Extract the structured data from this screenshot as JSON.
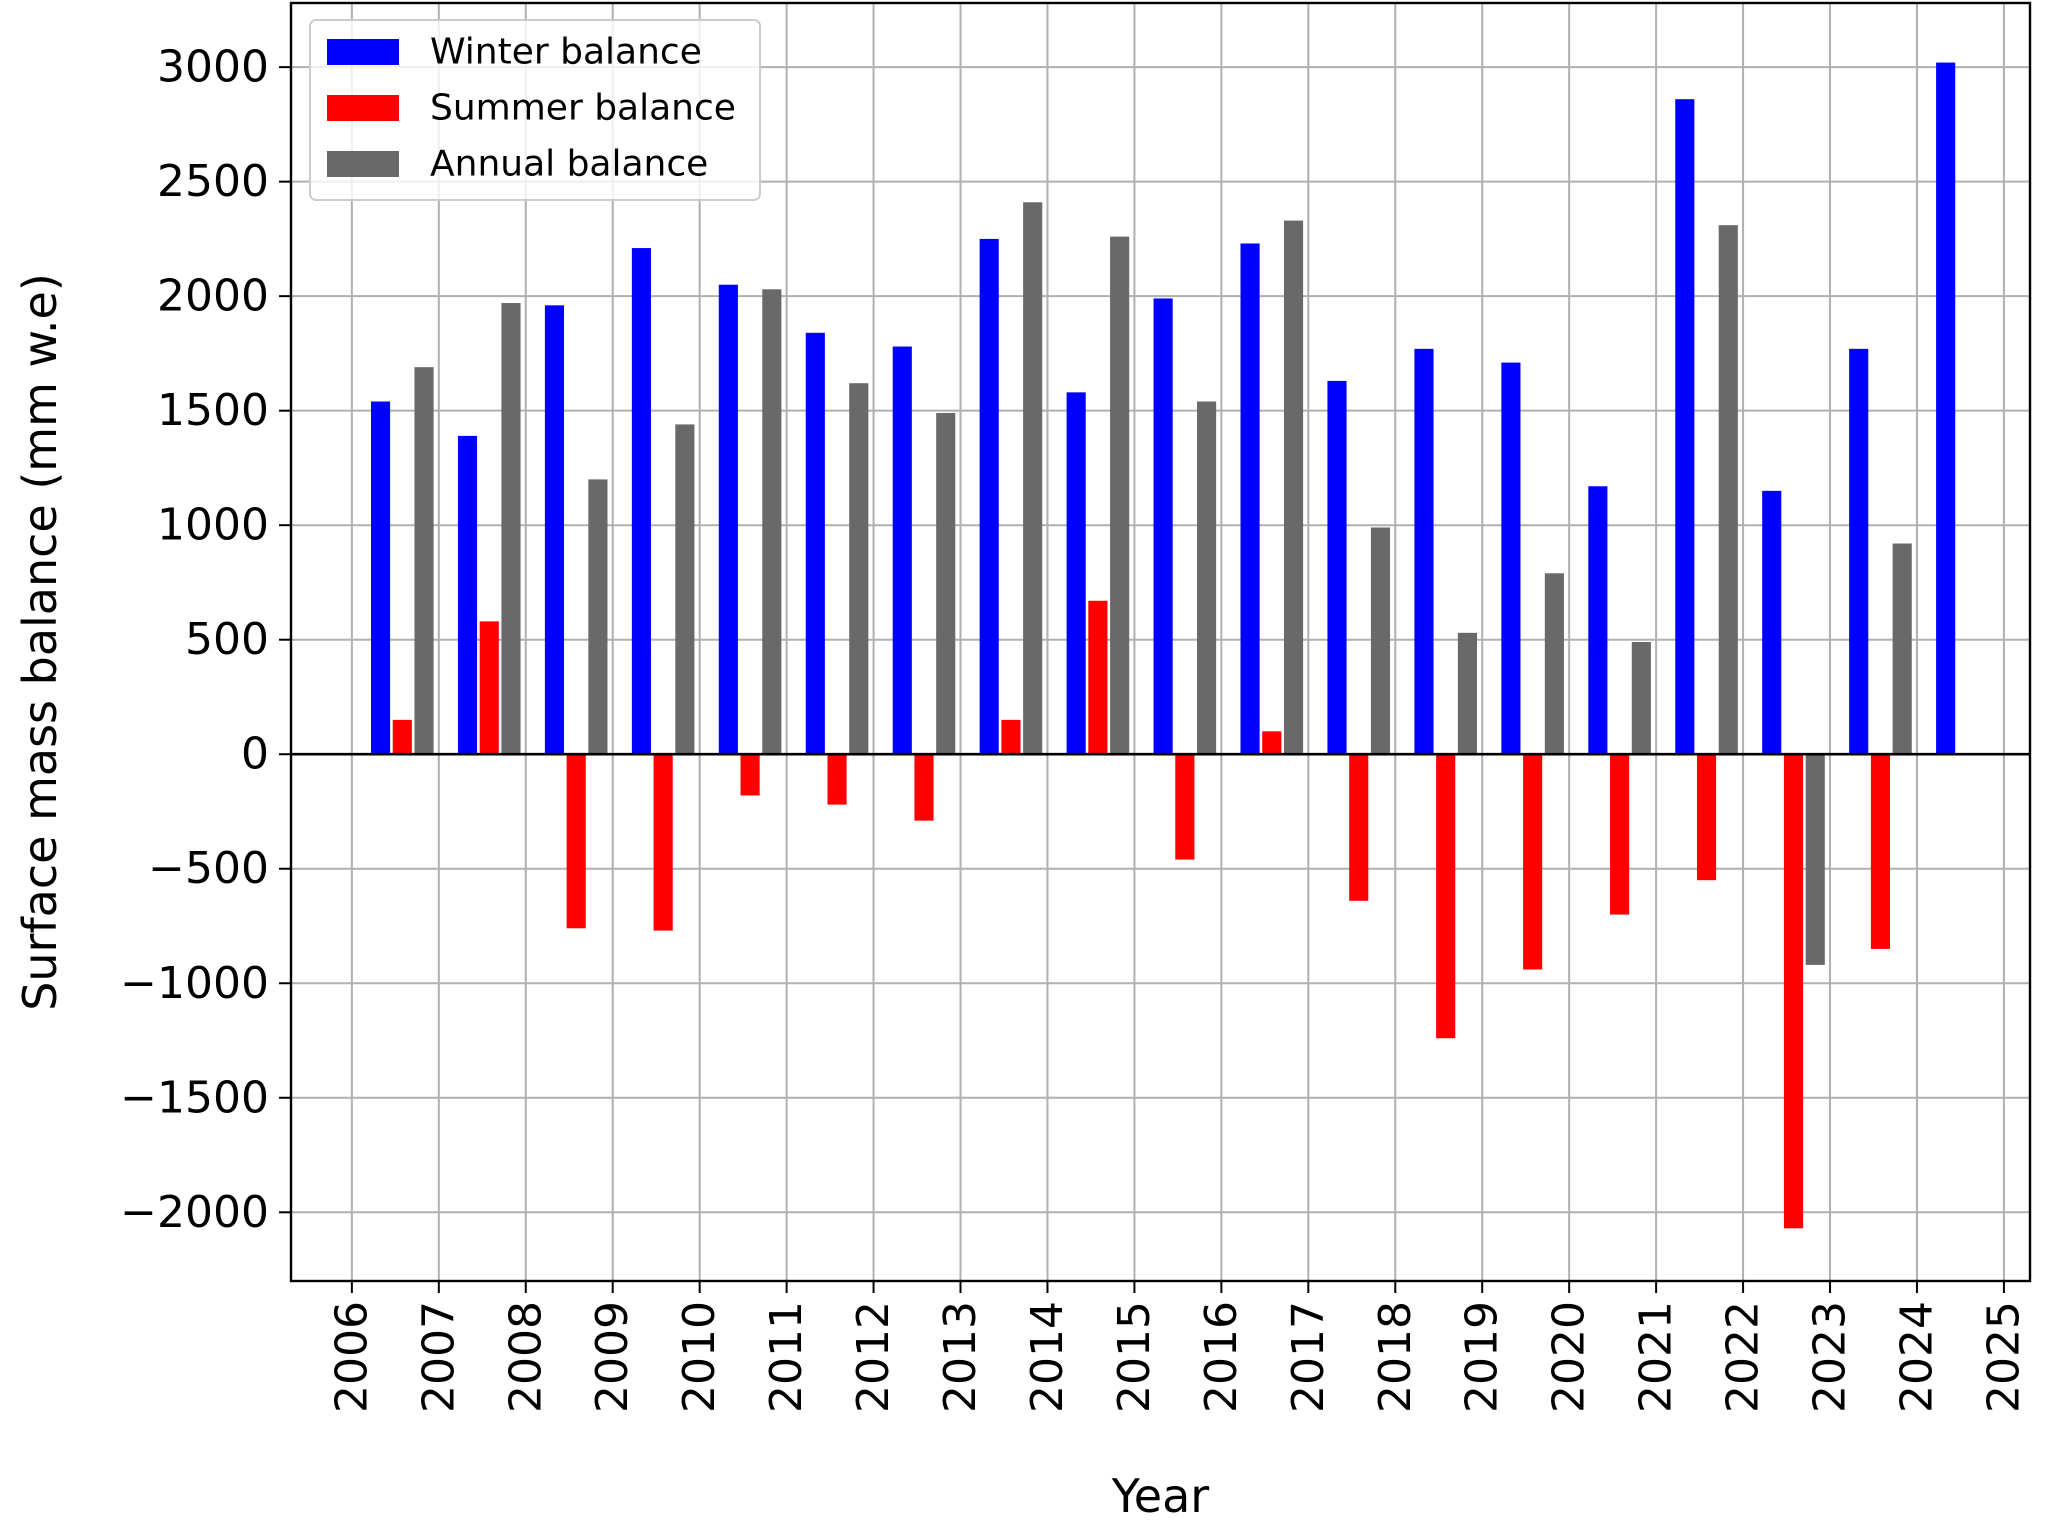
{
  "chart_data": {
    "type": "bar",
    "xlabel": "Year",
    "ylabel": "Surface mass balance (mm w.e)",
    "ylim": [
      -2300,
      3280
    ],
    "xlim": [
      2005.3,
      2025.3
    ],
    "x_ticks": [
      "2006",
      "2007",
      "2008",
      "2009",
      "2010",
      "2011",
      "2012",
      "2013",
      "2014",
      "2015",
      "2016",
      "2017",
      "2018",
      "2019",
      "2020",
      "2021",
      "2022",
      "2023",
      "2024",
      "2025"
    ],
    "y_ticks": [
      3000,
      2500,
      2000,
      1500,
      1000,
      500,
      0,
      -500,
      -1000,
      -1500,
      -2000
    ],
    "y_tick_labels": [
      "3000",
      "2500",
      "2000",
      "1500",
      "1000",
      "500",
      "0",
      "−500",
      "−1000",
      "−1500",
      "−2000"
    ],
    "grid": true,
    "legend_position": "top-left",
    "series": [
      {
        "name": "Winter balance",
        "color": "#0000ff",
        "x": [
          2006.33,
          2007.33,
          2008.33,
          2009.33,
          2010.33,
          2011.33,
          2012.33,
          2013.33,
          2014.33,
          2015.33,
          2016.33,
          2017.33,
          2018.33,
          2019.33,
          2020.33,
          2021.33,
          2022.33,
          2023.33,
          2024.33
        ],
        "values": [
          1540,
          1390,
          1960,
          2210,
          2050,
          1840,
          1780,
          2250,
          1580,
          1990,
          2230,
          1630,
          1770,
          1710,
          1170,
          2860,
          1150,
          1770,
          3020
        ]
      },
      {
        "name": "Summer balance",
        "color": "#ff0000",
        "x": [
          2006.58,
          2007.58,
          2008.58,
          2009.58,
          2010.58,
          2011.58,
          2012.58,
          2013.58,
          2014.58,
          2015.58,
          2016.58,
          2017.58,
          2018.58,
          2019.58,
          2020.58,
          2021.58,
          2022.58,
          2023.58
        ],
        "values": [
          150,
          580,
          -760,
          -770,
          -180,
          -220,
          -290,
          150,
          670,
          -460,
          100,
          -640,
          -1240,
          -940,
          -700,
          -550,
          -2070,
          -850
        ]
      },
      {
        "name": "Annual balance",
        "color": "#696969",
        "x": [
          2006.83,
          2007.83,
          2008.83,
          2009.83,
          2010.83,
          2011.83,
          2012.83,
          2013.83,
          2014.83,
          2015.83,
          2016.83,
          2017.83,
          2018.83,
          2019.83,
          2020.83,
          2021.83,
          2022.83,
          2023.83
        ],
        "values": [
          1690,
          1970,
          1200,
          1440,
          2030,
          1620,
          1490,
          2410,
          2260,
          1540,
          2330,
          990,
          530,
          790,
          490,
          2310,
          -920,
          920
        ]
      }
    ]
  }
}
